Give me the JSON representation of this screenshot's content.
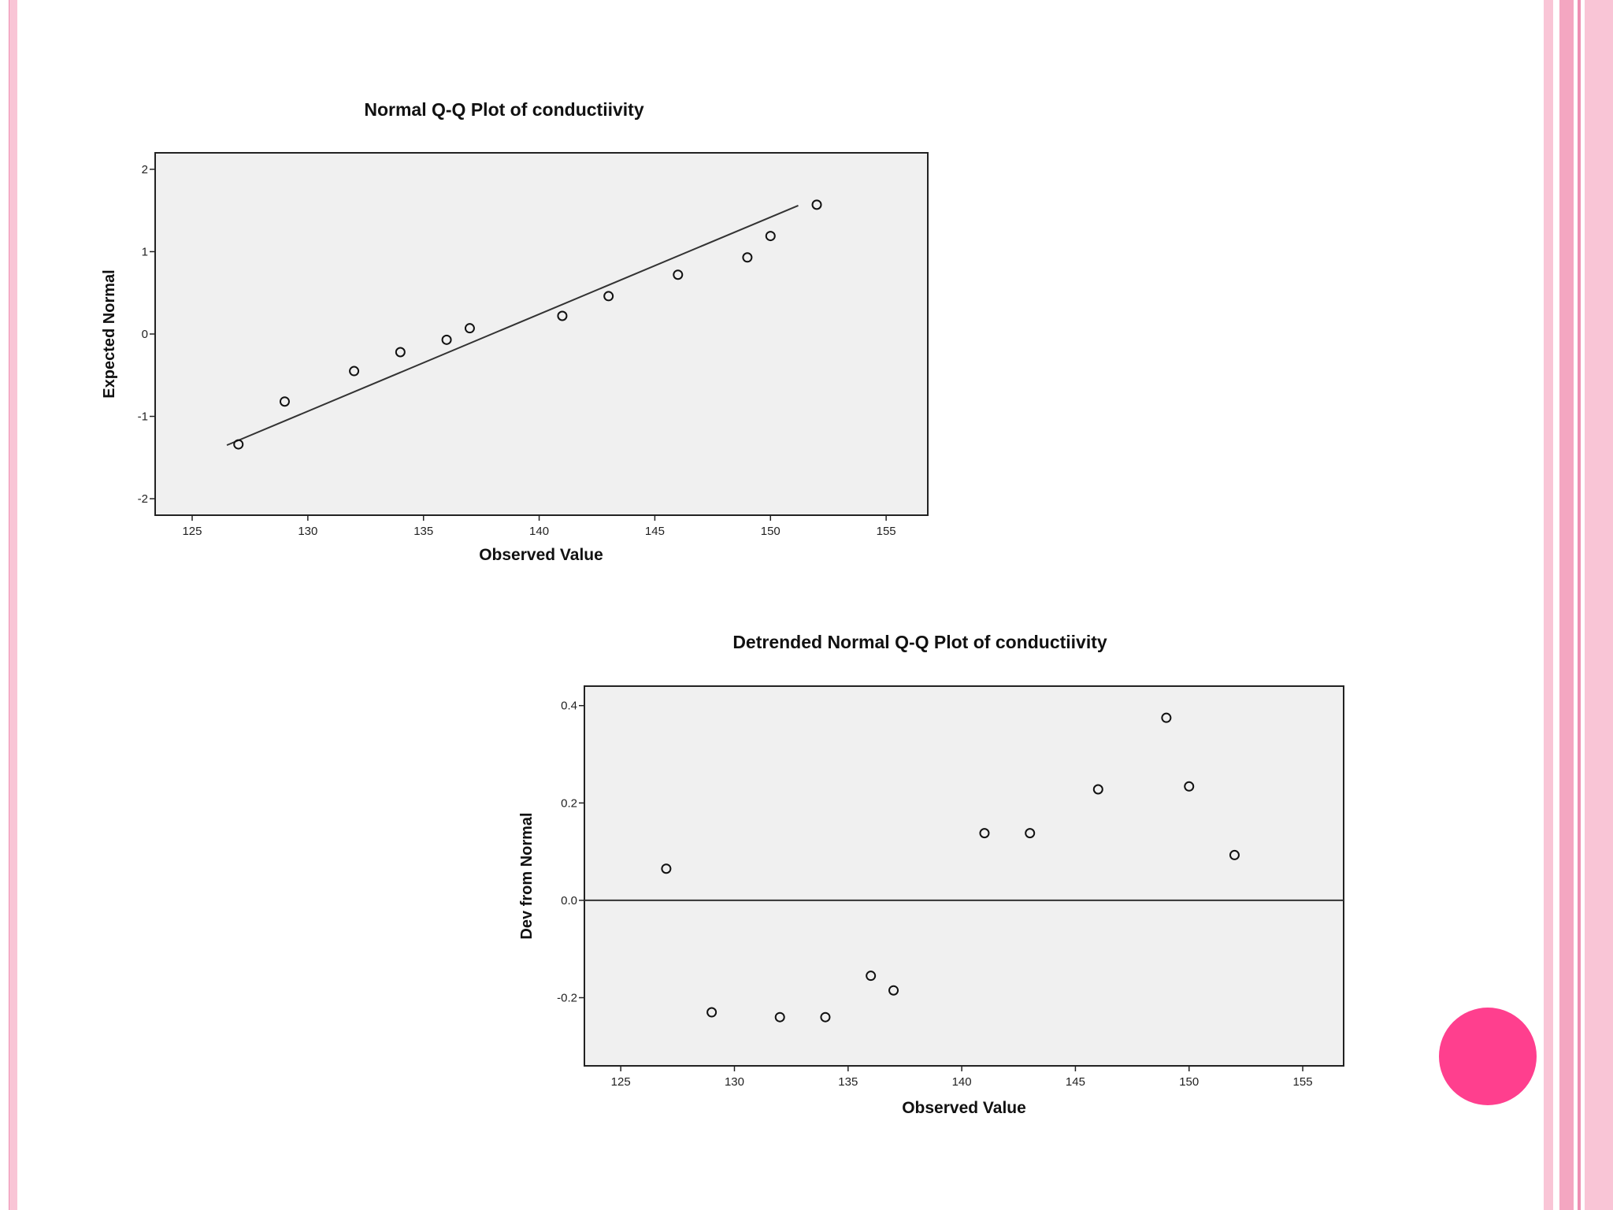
{
  "colors": {
    "stripe_light": "#f9c5d6",
    "stripe_medium": "#f4a6c1",
    "stripe_line": "#ee8fb3",
    "accent_circle": "#ff3f8e",
    "plot_background": "#f0f0f0",
    "marker": "#111111"
  },
  "chart_data": [
    {
      "type": "scatter",
      "title": "Normal Q-Q Plot of conductiivity",
      "xlabel": "Observed Value",
      "ylabel": "Expected Normal",
      "xlim": [
        123.4,
        156.8
      ],
      "ylim": [
        -2.2,
        2.2
      ],
      "xticks": [
        125,
        130,
        135,
        140,
        145,
        150,
        155
      ],
      "xtick_labels": [
        "125",
        "130",
        "135",
        "140",
        "145",
        "150",
        "155"
      ],
      "yticks": [
        2,
        1,
        0,
        -1,
        -2
      ],
      "ytick_labels": [
        "2",
        "1",
        "0",
        "-1",
        "-2"
      ],
      "grid": false,
      "points": [
        {
          "x": 127,
          "y": -1.34
        },
        {
          "x": 129,
          "y": -0.82
        },
        {
          "x": 132,
          "y": -0.45
        },
        {
          "x": 134,
          "y": -0.22
        },
        {
          "x": 136,
          "y": -0.07
        },
        {
          "x": 137,
          "y": 0.07
        },
        {
          "x": 141,
          "y": 0.22
        },
        {
          "x": 143,
          "y": 0.46
        },
        {
          "x": 146,
          "y": 0.72
        },
        {
          "x": 149,
          "y": 0.93
        },
        {
          "x": 150,
          "y": 1.19
        },
        {
          "x": 152,
          "y": 1.57
        }
      ],
      "reference_line": [
        {
          "x": 126.5,
          "y": -1.35
        },
        {
          "x": 151.2,
          "y": 1.56
        }
      ]
    },
    {
      "type": "scatter",
      "title": "Detrended Normal Q-Q Plot of conductiivity",
      "xlabel": "Observed Value",
      "ylabel": "Dev from Normal",
      "xlim": [
        123.4,
        156.8
      ],
      "ylim": [
        -0.34,
        0.44
      ],
      "xticks": [
        125,
        130,
        135,
        140,
        145,
        150,
        155
      ],
      "xtick_labels": [
        "125",
        "130",
        "135",
        "140",
        "145",
        "150",
        "155"
      ],
      "yticks": [
        0.4,
        0.2,
        0.0,
        -0.2
      ],
      "ytick_labels": [
        "0.4",
        "0.2",
        "0.0",
        "-0.2"
      ],
      "grid": false,
      "points": [
        {
          "x": 127,
          "y": 0.065
        },
        {
          "x": 129,
          "y": -0.23
        },
        {
          "x": 132,
          "y": -0.24
        },
        {
          "x": 134,
          "y": -0.24
        },
        {
          "x": 136,
          "y": -0.155
        },
        {
          "x": 137,
          "y": -0.185
        },
        {
          "x": 141,
          "y": 0.138
        },
        {
          "x": 143,
          "y": 0.138
        },
        {
          "x": 146,
          "y": 0.228
        },
        {
          "x": 149,
          "y": 0.375
        },
        {
          "x": 150,
          "y": 0.234
        },
        {
          "x": 152,
          "y": 0.093
        }
      ],
      "reference_line": [
        {
          "x": 123.4,
          "y": 0
        },
        {
          "x": 156.8,
          "y": 0
        }
      ]
    }
  ]
}
